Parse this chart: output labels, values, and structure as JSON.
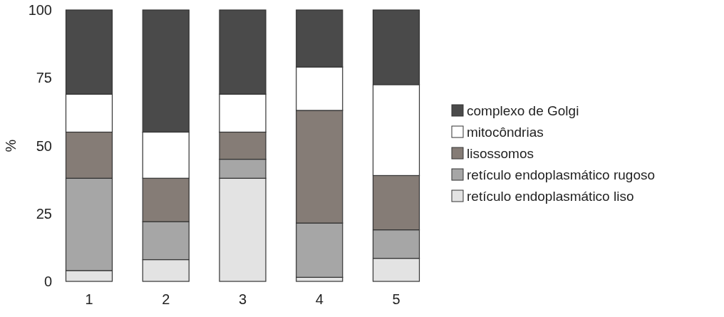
{
  "chart_data": {
    "type": "bar",
    "stacked": true,
    "ylabel": "%",
    "categories": [
      "1",
      "2",
      "3",
      "4",
      "5"
    ],
    "series": [
      {
        "name": "retículo endoplasmático liso",
        "color": "#e3e3e3",
        "values": [
          4,
          8,
          38,
          1.5,
          8.5
        ]
      },
      {
        "name": "retículo endoplasmático rugoso",
        "color": "#a6a6a6",
        "values": [
          34,
          14,
          7,
          20,
          10.5
        ]
      },
      {
        "name": "lisossomos",
        "color": "#857c76",
        "values": [
          17,
          16,
          10,
          41.5,
          20
        ]
      },
      {
        "name": "mitocôndrias",
        "color": "#ffffff",
        "values": [
          14,
          17,
          14,
          16,
          33.5
        ]
      },
      {
        "name": "complexo de Golgi",
        "color": "#4a4a4a",
        "values": [
          31,
          45,
          31,
          21,
          27.5
        ]
      }
    ],
    "ylim": [
      0,
      100
    ],
    "yticks": [
      0,
      25,
      50,
      75,
      100
    ],
    "legend": "right"
  }
}
